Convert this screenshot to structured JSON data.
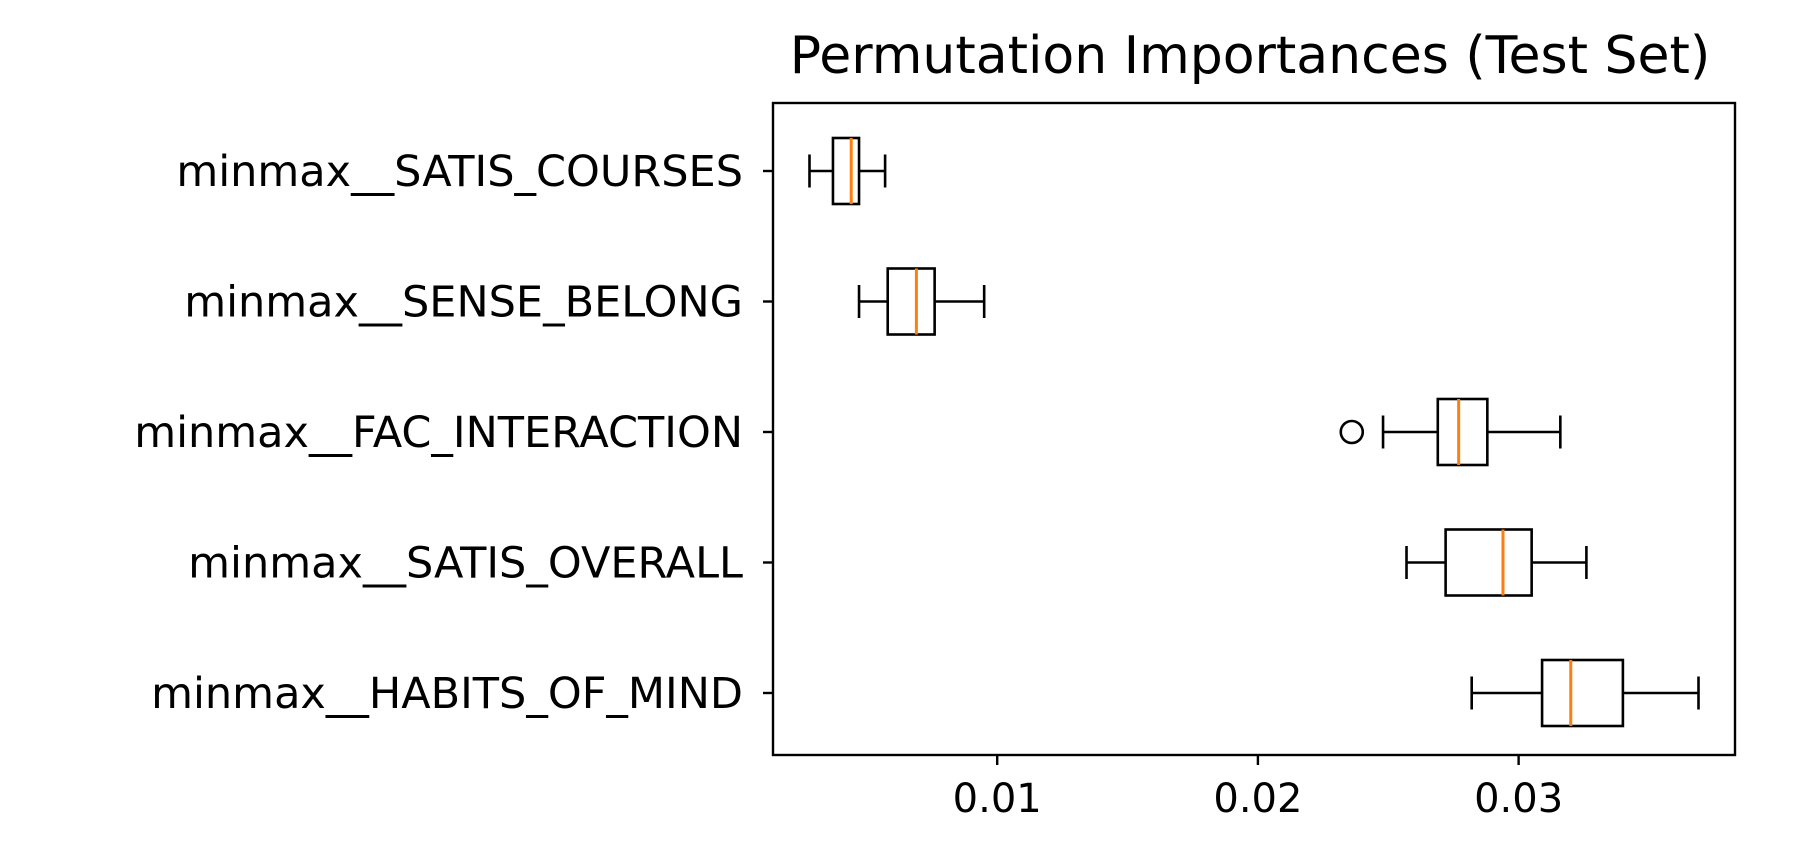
{
  "chart_data": {
    "type": "boxplot",
    "orientation": "horizontal",
    "title": "Permutation Importances (Test Set)",
    "xlabel": "",
    "ylabel": "",
    "xlim": [
      0.0014,
      0.0383
    ],
    "x_ticks": [
      {
        "value": 0.01,
        "label": "0.01"
      },
      {
        "value": 0.02,
        "label": "0.02"
      },
      {
        "value": 0.03,
        "label": "0.03"
      }
    ],
    "grid": false,
    "legend": "none",
    "colors": {
      "box": "#000000",
      "median": "#ff7f0e",
      "background": "#ffffff"
    },
    "categories": [
      "minmax__SATIS_COURSES",
      "minmax__SENSE_BELONG",
      "minmax__FAC_INTERACTION",
      "minmax__SATIS_OVERALL",
      "minmax__HABITS_OF_MIND"
    ],
    "boxes": [
      {
        "label": "minmax__SATIS_COURSES",
        "whisker_low": 0.0028,
        "q1": 0.0037,
        "median": 0.0044,
        "q3": 0.0047,
        "whisker_high": 0.0057,
        "outliers": []
      },
      {
        "label": "minmax__SENSE_BELONG",
        "whisker_low": 0.0047,
        "q1": 0.0058,
        "median": 0.0069,
        "q3": 0.0076,
        "whisker_high": 0.0095,
        "outliers": []
      },
      {
        "label": "minmax__FAC_INTERACTION",
        "whisker_low": 0.0248,
        "q1": 0.0269,
        "median": 0.0277,
        "q3": 0.0288,
        "whisker_high": 0.0316,
        "outliers": [
          0.0236
        ]
      },
      {
        "label": "minmax__SATIS_OVERALL",
        "whisker_low": 0.0257,
        "q1": 0.0272,
        "median": 0.0294,
        "q3": 0.0305,
        "whisker_high": 0.0326,
        "outliers": []
      },
      {
        "label": "minmax__HABITS_OF_MIND",
        "whisker_low": 0.0282,
        "q1": 0.0309,
        "median": 0.032,
        "q3": 0.034,
        "whisker_high": 0.0369,
        "outliers": []
      }
    ]
  }
}
